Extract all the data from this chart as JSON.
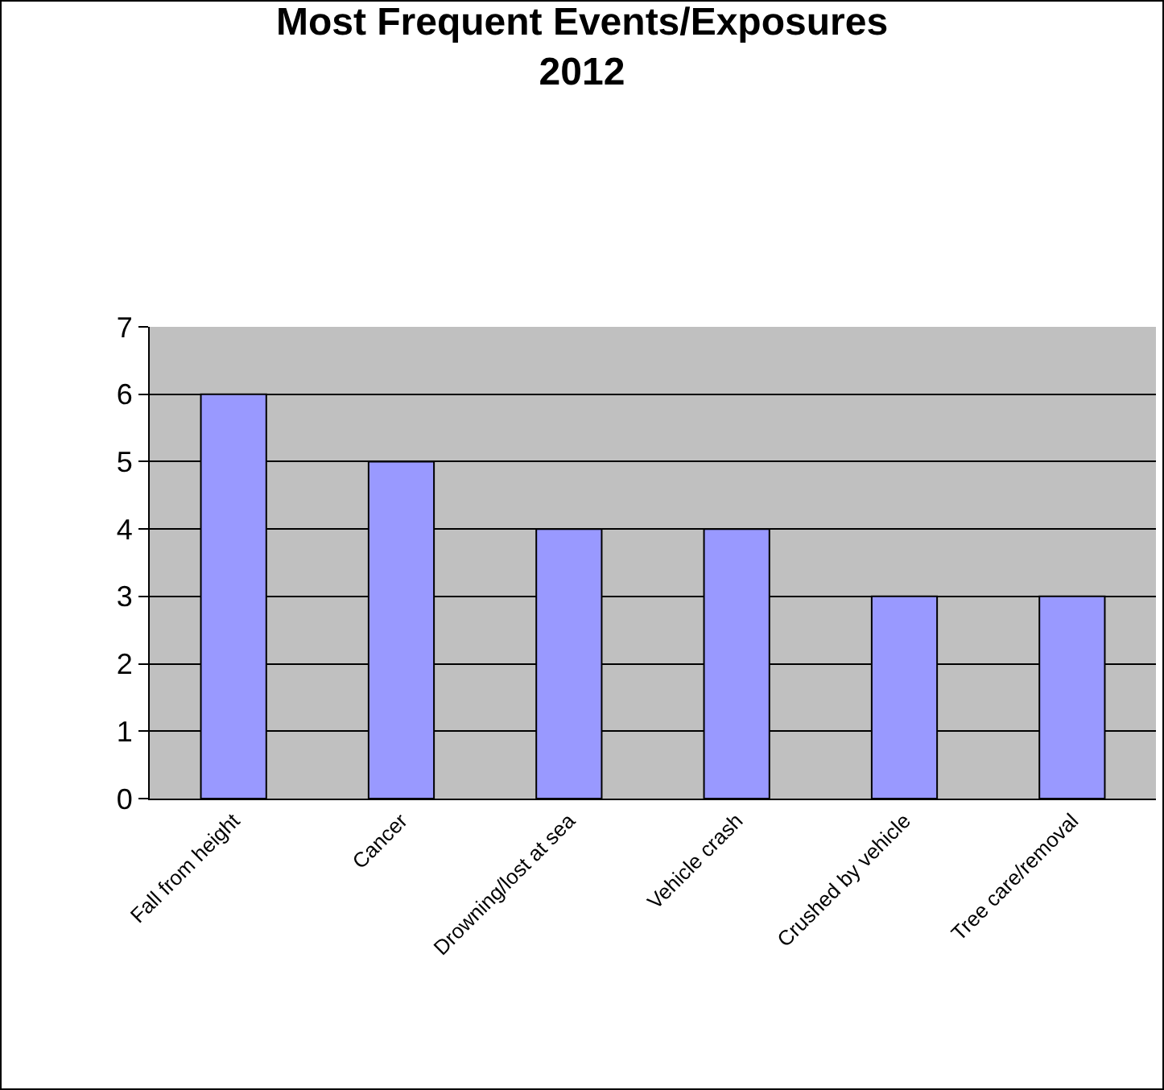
{
  "chart_data": {
    "type": "bar",
    "title": "Most Frequent Events/Exposures\n2012",
    "categories": [
      "Fall from height",
      "Cancer",
      "Drowning/lost at sea",
      "Vehicle crash",
      "Crushed by vehicle",
      "Tree care/removal"
    ],
    "values": [
      6,
      5,
      4,
      4,
      3,
      3
    ],
    "color": "#9999ff",
    "ylim": [
      0,
      7
    ],
    "yticks": [
      0,
      1,
      2,
      3,
      4,
      5,
      6,
      7
    ],
    "grid": "y",
    "legend": false
  }
}
